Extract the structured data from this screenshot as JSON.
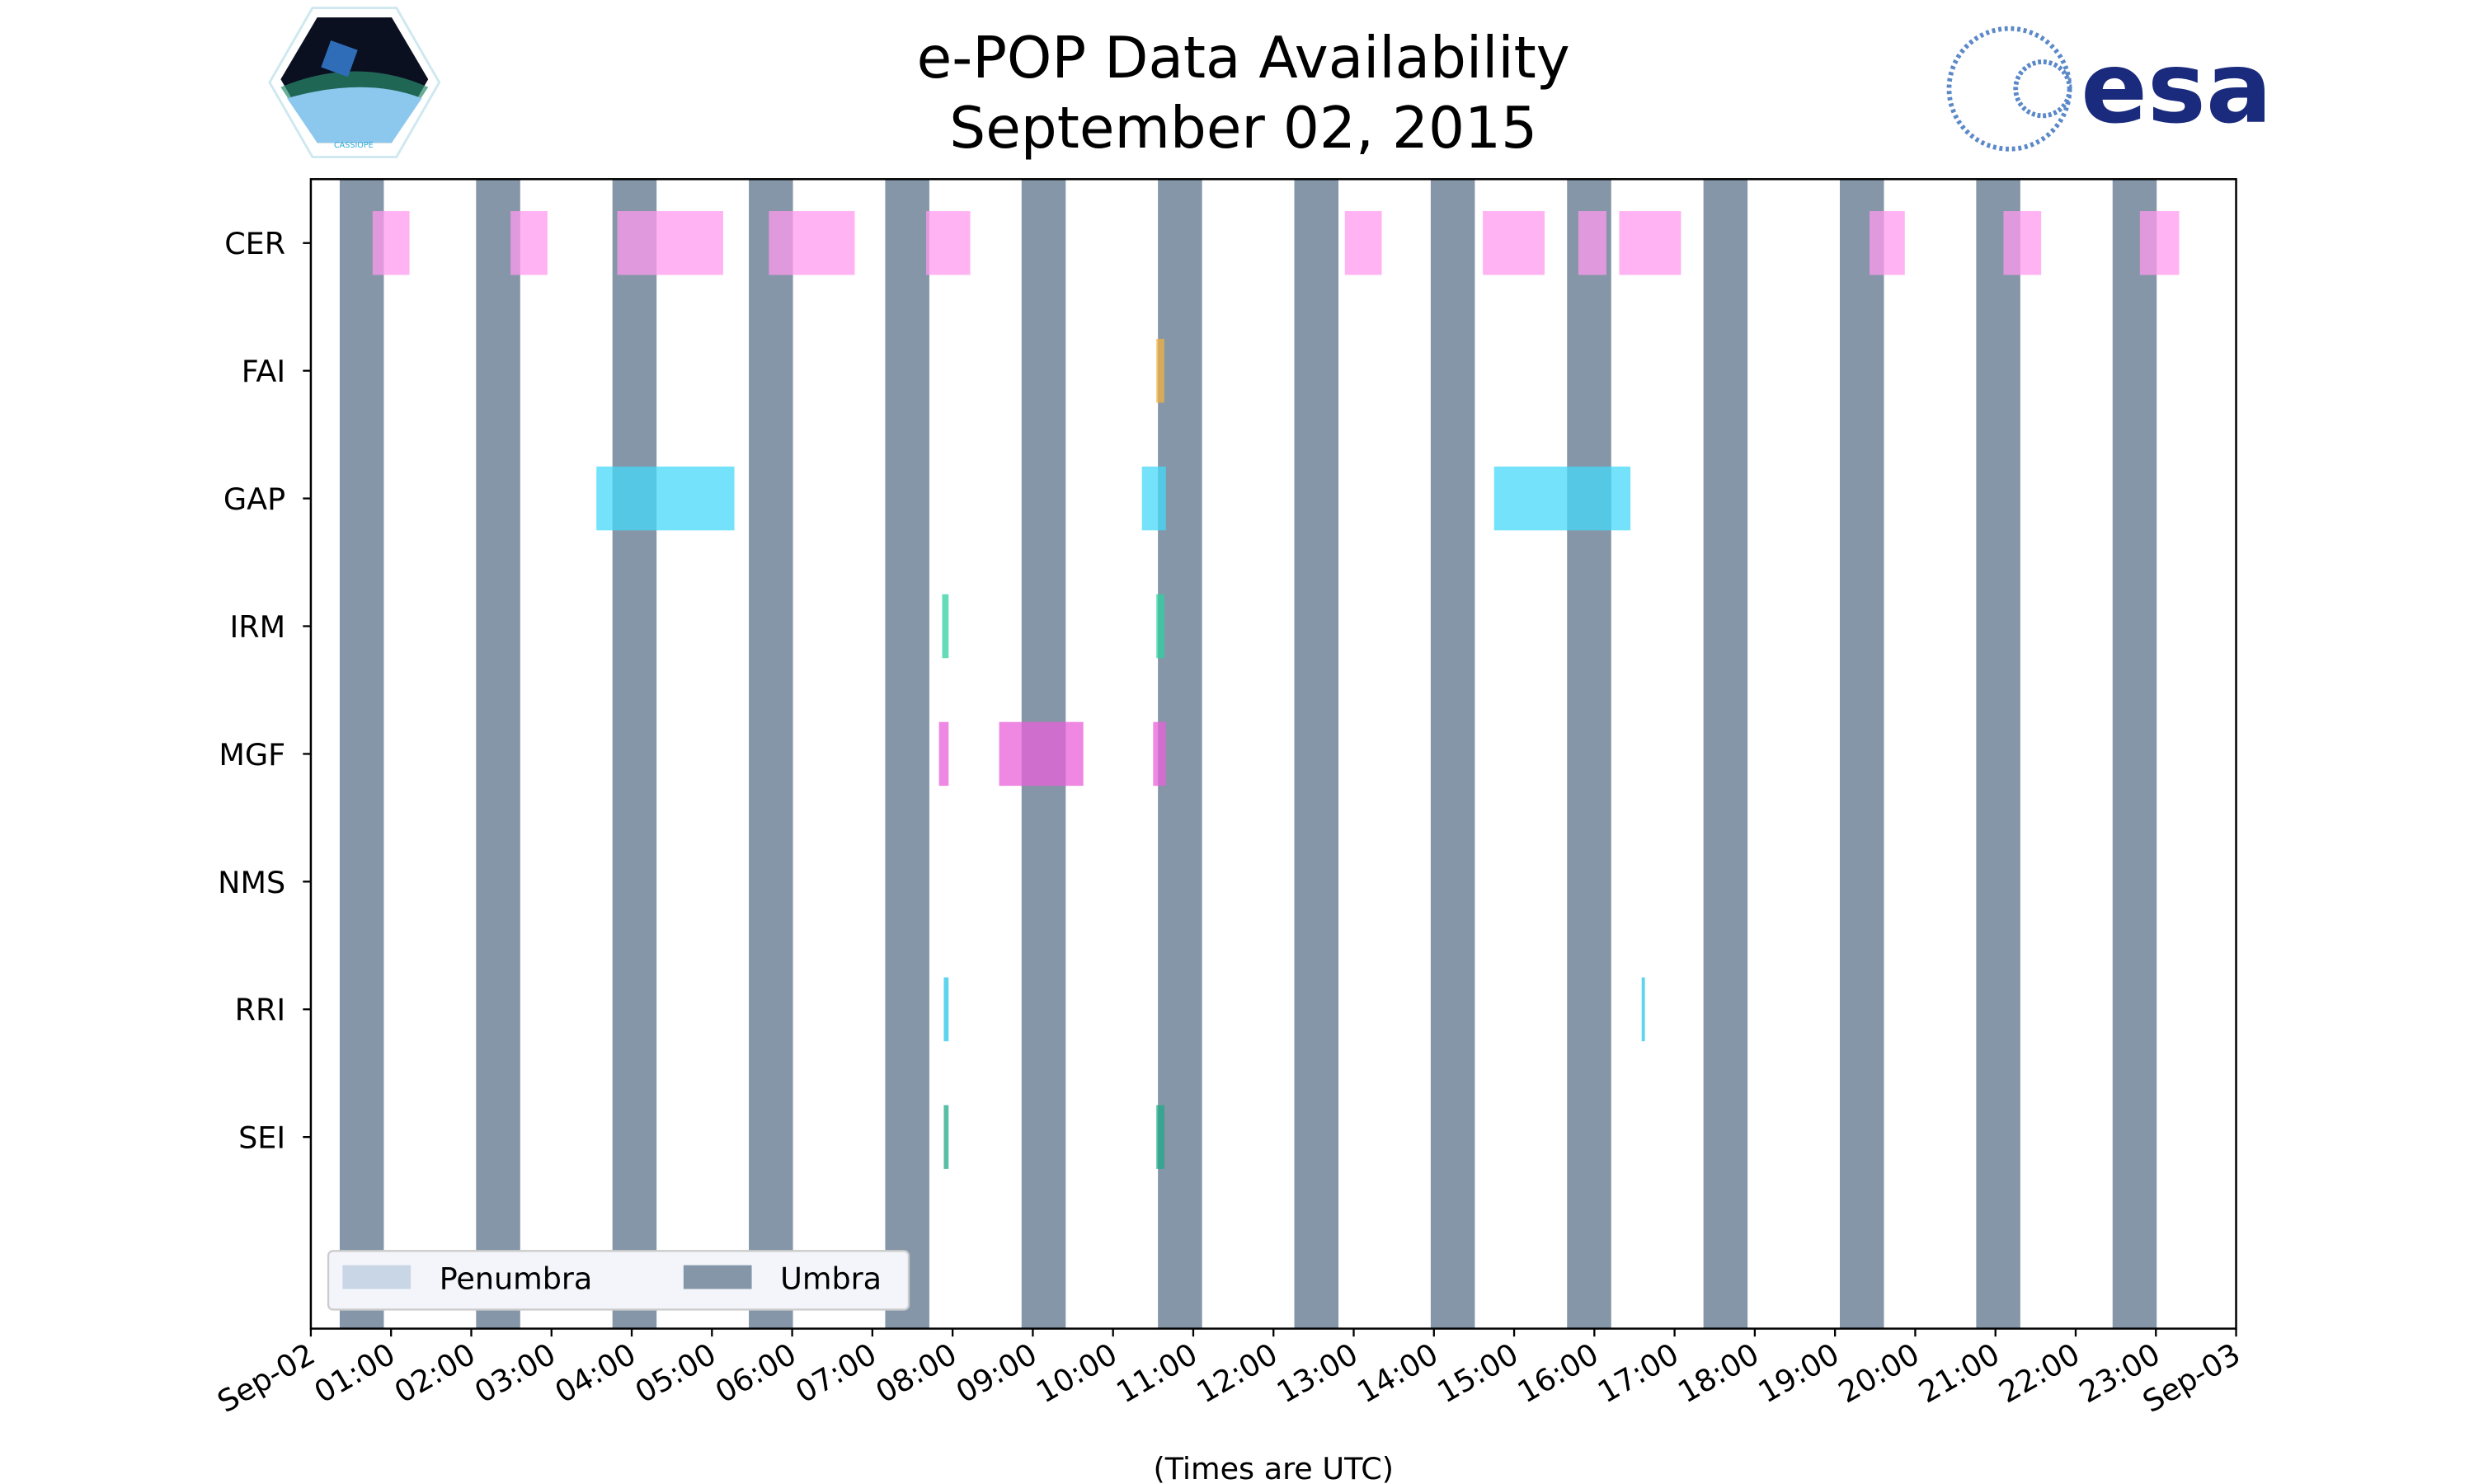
{
  "logos": {
    "left": {
      "text": "CASSIOPE",
      "icon": "cassiope-mission-hexagon"
    },
    "right": {
      "text": "esa",
      "icon": "esa-logo",
      "color": "#1a2a7c"
    }
  },
  "chart_data": {
    "type": "timeline",
    "title": [
      "e-POP Data Availability",
      "September 02, 2015"
    ],
    "xlabel": "(Times are UTC)",
    "ylabel": "",
    "xlim_hours": [
      0,
      24
    ],
    "x_tick_labels": [
      "Sep-02",
      "01:00",
      "02:00",
      "03:00",
      "04:00",
      "05:00",
      "06:00",
      "07:00",
      "08:00",
      "09:00",
      "10:00",
      "11:00",
      "12:00",
      "13:00",
      "14:00",
      "15:00",
      "16:00",
      "17:00",
      "18:00",
      "19:00",
      "20:00",
      "21:00",
      "22:00",
      "23:00",
      "Sep-03"
    ],
    "categories": [
      "CER",
      "FAI",
      "GAP",
      "IRM",
      "MGF",
      "NMS",
      "RRI",
      "SEI"
    ],
    "ylim": [
      -0.5,
      8.5
    ],
    "legend": {
      "placement": "lower-left",
      "entries": [
        {
          "label": "Penumbra",
          "color": "#c8d6e6"
        },
        {
          "label": "Umbra",
          "color": "#8596a8"
        }
      ]
    },
    "umbra_hours": [
      [
        0.36,
        0.91
      ],
      [
        2.06,
        2.61
      ],
      [
        3.76,
        4.31
      ],
      [
        5.46,
        6.01
      ],
      [
        7.16,
        7.71
      ],
      [
        8.86,
        9.41
      ],
      [
        10.56,
        11.11
      ],
      [
        12.26,
        12.81
      ],
      [
        13.96,
        14.51
      ],
      [
        15.66,
        16.21
      ],
      [
        17.36,
        17.91
      ],
      [
        19.06,
        19.61
      ],
      [
        20.76,
        21.31
      ],
      [
        22.46,
        23.01
      ]
    ],
    "series": [
      {
        "name": "CER",
        "color": "#ff99ee",
        "intervals": [
          [
            0.77,
            1.23
          ],
          [
            2.49,
            2.95
          ],
          [
            3.82,
            5.14
          ],
          [
            5.71,
            6.78
          ],
          [
            7.67,
            8.22
          ],
          [
            12.89,
            13.35
          ],
          [
            14.61,
            15.38
          ],
          [
            15.8,
            16.15
          ],
          [
            16.31,
            17.08
          ],
          [
            19.43,
            19.87
          ],
          [
            21.1,
            21.57
          ],
          [
            22.8,
            23.29
          ]
        ]
      },
      {
        "name": "FAI",
        "color": "#f0b040",
        "intervals": [
          [
            10.54,
            10.64
          ]
        ]
      },
      {
        "name": "GAP",
        "color": "#44d8f8",
        "intervals": [
          [
            3.56,
            5.28
          ],
          [
            10.36,
            10.66
          ],
          [
            14.75,
            16.45
          ]
        ]
      },
      {
        "name": "IRM",
        "color": "#30d0a0",
        "intervals": [
          [
            7.87,
            7.95
          ],
          [
            10.54,
            10.64
          ]
        ]
      },
      {
        "name": "MGF",
        "color": "#e860d8",
        "intervals": [
          [
            7.83,
            7.95
          ],
          [
            8.58,
            9.63
          ],
          [
            10.5,
            10.66
          ]
        ]
      },
      {
        "name": "NMS",
        "color": "#888888",
        "intervals": []
      },
      {
        "name": "RRI",
        "color": "#28c4e8",
        "intervals": [
          [
            7.89,
            7.95
          ],
          [
            16.59,
            16.63
          ]
        ]
      },
      {
        "name": "SEI",
        "color": "#20a888",
        "intervals": [
          [
            7.89,
            7.95
          ],
          [
            10.54,
            10.64
          ]
        ]
      }
    ]
  }
}
